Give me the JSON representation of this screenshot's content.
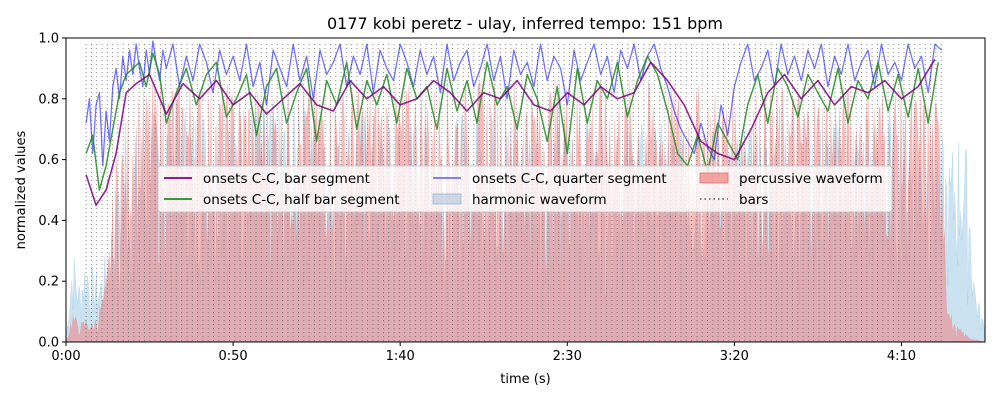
{
  "chart_data": {
    "type": "line",
    "title": "0177 kobi peretz - ulay, inferred tempo: 151 bpm",
    "xlabel": "time (s)",
    "ylabel": "normalized values",
    "xlim": [
      0,
      275
    ],
    "ylim": [
      0,
      1
    ],
    "x_ticks": [
      0,
      50,
      100,
      150,
      200,
      250
    ],
    "x_tick_labels": [
      "0:00",
      "0:50",
      "1:40",
      "2:30",
      "3:20",
      "4:10"
    ],
    "y_ticks": [
      0,
      0.2,
      0.4,
      0.6,
      0.8,
      1.0
    ],
    "y_tick_labels": [
      "0.0",
      "0.2",
      "0.4",
      "0.6",
      "0.8",
      "1.0"
    ],
    "grid": false,
    "legend_position": "center",
    "tempo_bpm": 151,
    "bars_range": [
      6,
      262
    ],
    "series": [
      {
        "name": "onsets C-C, bar segment",
        "color": "#800080",
        "x": [
          6,
          9,
          12,
          15,
          18,
          21,
          25,
          30,
          35,
          40,
          45,
          50,
          55,
          60,
          65,
          70,
          75,
          80,
          85,
          90,
          95,
          100,
          105,
          110,
          115,
          120,
          125,
          130,
          135,
          140,
          145,
          150,
          155,
          160,
          165,
          170,
          175,
          180,
          185,
          190,
          195,
          200,
          205,
          210,
          215,
          220,
          225,
          230,
          235,
          240,
          245,
          250,
          255,
          260
        ],
        "values": [
          0.55,
          0.45,
          0.5,
          0.62,
          0.82,
          0.85,
          0.88,
          0.75,
          0.85,
          0.8,
          0.86,
          0.78,
          0.82,
          0.75,
          0.8,
          0.85,
          0.78,
          0.76,
          0.86,
          0.8,
          0.84,
          0.78,
          0.8,
          0.86,
          0.82,
          0.76,
          0.82,
          0.8,
          0.86,
          0.78,
          0.76,
          0.82,
          0.78,
          0.84,
          0.8,
          0.82,
          0.92,
          0.86,
          0.78,
          0.66,
          0.62,
          0.6,
          0.7,
          0.82,
          0.88,
          0.8,
          0.86,
          0.78,
          0.84,
          0.82,
          0.86,
          0.8,
          0.84,
          0.93
        ]
      },
      {
        "name": "onsets C-C, half bar segment",
        "color": "#228b22",
        "x": [
          6,
          8,
          10,
          12,
          14,
          16,
          18,
          20,
          22,
          24,
          26,
          28,
          30,
          33,
          36,
          39,
          42,
          45,
          48,
          51,
          54,
          57,
          60,
          63,
          66,
          69,
          72,
          75,
          78,
          81,
          84,
          87,
          90,
          93,
          96,
          99,
          102,
          105,
          108,
          111,
          114,
          117,
          120,
          123,
          126,
          129,
          132,
          135,
          138,
          141,
          144,
          147,
          150,
          153,
          156,
          159,
          162,
          165,
          168,
          171,
          174,
          177,
          180,
          183,
          186,
          189,
          192,
          195,
          198,
          201,
          204,
          207,
          210,
          213,
          216,
          219,
          222,
          225,
          228,
          231,
          234,
          237,
          240,
          243,
          246,
          249,
          252,
          255,
          258,
          261
        ],
        "values": [
          0.62,
          0.68,
          0.5,
          0.58,
          0.7,
          0.82,
          0.88,
          0.9,
          0.92,
          0.84,
          0.95,
          0.88,
          0.72,
          0.82,
          0.9,
          0.78,
          0.88,
          0.92,
          0.74,
          0.8,
          0.88,
          0.68,
          0.84,
          0.9,
          0.72,
          0.82,
          0.9,
          0.66,
          0.86,
          0.78,
          0.92,
          0.7,
          0.86,
          0.78,
          0.88,
          0.72,
          0.9,
          0.8,
          0.84,
          0.7,
          0.9,
          0.76,
          0.86,
          0.72,
          0.92,
          0.78,
          0.84,
          0.7,
          0.88,
          0.8,
          0.66,
          0.84,
          0.62,
          0.9,
          0.72,
          0.86,
          0.8,
          0.92,
          0.74,
          0.86,
          0.94,
          0.88,
          0.76,
          0.62,
          0.58,
          0.68,
          0.56,
          0.72,
          0.66,
          0.6,
          0.78,
          0.88,
          0.72,
          0.9,
          0.84,
          0.74,
          0.88,
          0.82,
          0.76,
          0.9,
          0.72,
          0.86,
          0.8,
          0.92,
          0.76,
          0.88,
          0.74,
          0.9,
          0.72,
          0.92
        ]
      },
      {
        "name": "onsets C-C, quarter segment",
        "color": "#0000ff",
        "x": [
          6,
          7,
          8,
          9,
          10,
          11,
          12,
          13,
          14,
          15,
          16,
          17,
          18,
          19,
          20,
          21,
          22,
          23,
          24,
          25,
          26,
          27,
          28,
          29,
          30,
          32,
          34,
          36,
          38,
          40,
          42,
          44,
          46,
          48,
          50,
          52,
          54,
          56,
          58,
          60,
          62,
          64,
          66,
          68,
          70,
          72,
          74,
          76,
          78,
          80,
          82,
          84,
          86,
          88,
          90,
          92,
          94,
          96,
          98,
          100,
          102,
          104,
          106,
          108,
          110,
          112,
          114,
          116,
          118,
          120,
          122,
          124,
          126,
          128,
          130,
          132,
          134,
          136,
          138,
          140,
          142,
          144,
          146,
          148,
          150,
          152,
          154,
          156,
          158,
          160,
          162,
          164,
          166,
          168,
          170,
          172,
          174,
          176,
          178,
          180,
          182,
          184,
          186,
          188,
          190,
          192,
          194,
          196,
          198,
          200,
          202,
          204,
          206,
          208,
          210,
          212,
          214,
          216,
          218,
          220,
          222,
          224,
          226,
          228,
          230,
          232,
          234,
          236,
          238,
          240,
          242,
          244,
          246,
          248,
          250,
          252,
          254,
          256,
          258,
          260,
          262
        ],
        "values": [
          0.72,
          0.8,
          0.62,
          0.78,
          0.82,
          0.58,
          0.76,
          0.66,
          0.84,
          0.9,
          0.8,
          0.94,
          0.86,
          0.96,
          0.88,
          0.98,
          0.9,
          0.84,
          0.96,
          0.88,
          0.99,
          0.92,
          0.86,
          0.96,
          0.9,
          0.98,
          0.84,
          0.94,
          0.86,
          0.98,
          0.92,
          0.82,
          0.96,
          0.88,
          0.94,
          0.86,
          0.98,
          0.84,
          0.92,
          0.78,
          0.96,
          0.9,
          0.84,
          0.98,
          0.86,
          0.94,
          0.8,
          0.96,
          0.88,
          0.92,
          0.98,
          0.84,
          0.94,
          0.88,
          0.98,
          0.82,
          0.96,
          0.9,
          0.86,
          0.98,
          0.92,
          0.84,
          0.96,
          0.88,
          0.94,
          0.82,
          0.98,
          0.86,
          0.92,
          0.96,
          0.84,
          0.9,
          0.98,
          0.86,
          0.94,
          0.8,
          0.96,
          0.88,
          0.92,
          0.84,
          0.98,
          0.86,
          0.94,
          0.9,
          0.78,
          0.96,
          0.86,
          0.92,
          0.98,
          0.88,
          0.94,
          0.82,
          0.96,
          0.9,
          0.98,
          0.86,
          0.94,
          0.98,
          0.9,
          0.84,
          0.76,
          0.7,
          0.66,
          0.62,
          0.72,
          0.64,
          0.6,
          0.78,
          0.68,
          0.84,
          0.92,
          0.98,
          0.86,
          0.9,
          0.96,
          0.84,
          0.98,
          0.88,
          0.94,
          0.86,
          0.96,
          0.9,
          0.98,
          0.84,
          0.94,
          0.88,
          0.98,
          0.86,
          0.92,
          0.96,
          0.84,
          0.98,
          0.88,
          0.92,
          0.86,
          0.98,
          0.9,
          0.94,
          0.82,
          0.98,
          0.96
        ]
      }
    ],
    "area_series": [
      {
        "name": "harmonic waveform",
        "color": "#6baed6",
        "envelope_x": [
          0,
          2,
          4,
          6,
          8,
          10,
          12,
          15,
          20,
          30,
          50,
          100,
          150,
          200,
          250,
          262,
          264,
          266,
          268,
          270,
          272,
          275
        ],
        "envelope_y": [
          0.02,
          0.32,
          0.2,
          0.3,
          0.25,
          0.22,
          0.3,
          0.5,
          0.7,
          0.8,
          0.8,
          0.75,
          0.75,
          0.7,
          0.75,
          0.7,
          0.6,
          0.68,
          0.72,
          0.62,
          0.2,
          0.05
        ]
      },
      {
        "name": "percussive waveform",
        "color": "#f08080",
        "envelope_x": [
          0,
          2,
          4,
          6,
          8,
          10,
          12,
          15,
          20,
          30,
          50,
          100,
          150,
          200,
          250,
          262,
          264,
          266,
          268,
          270,
          272,
          275
        ],
        "envelope_y": [
          0.0,
          0.1,
          0.06,
          0.08,
          0.06,
          0.12,
          0.2,
          0.62,
          0.82,
          0.88,
          0.85,
          0.85,
          0.88,
          0.84,
          0.86,
          0.8,
          0.12,
          0.06,
          0.04,
          0.02,
          0.01,
          0.0
        ]
      }
    ],
    "legend_extra": [
      {
        "name": "bars",
        "color": "#555555",
        "style": "dotted"
      }
    ]
  }
}
